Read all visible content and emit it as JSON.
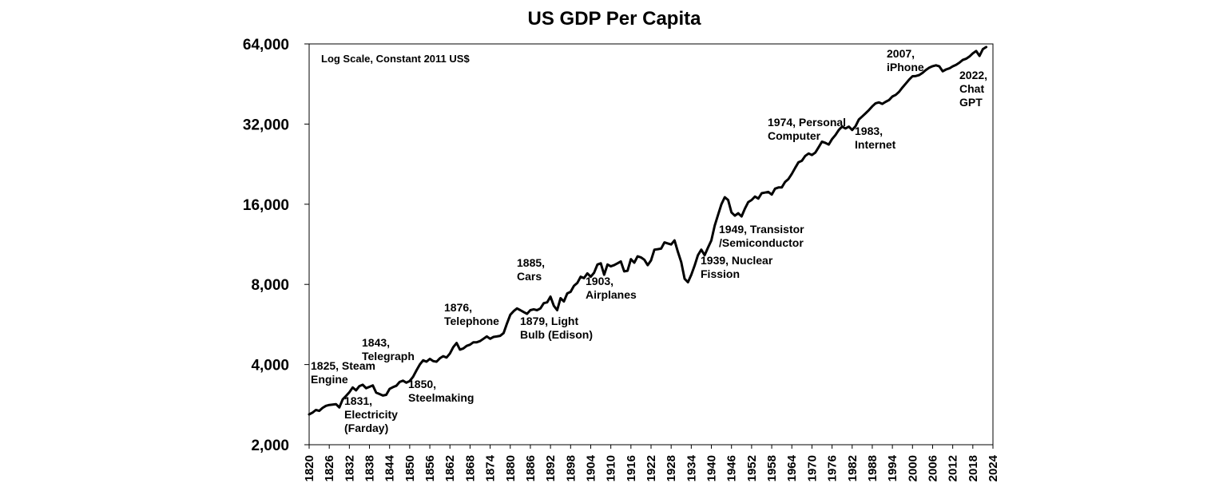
{
  "chart_data": {
    "type": "line",
    "title": "US GDP Per Capita",
    "note": "Log Scale, Constant 2011 US$",
    "y_scale": "log2",
    "ylim": [
      2000,
      64000
    ],
    "xlim": [
      1820,
      2024
    ],
    "y_ticks": [
      {
        "value": 2000,
        "label": "2,000"
      },
      {
        "value": 4000,
        "label": "4,000"
      },
      {
        "value": 8000,
        "label": "8,000"
      },
      {
        "value": 16000,
        "label": "16,000"
      },
      {
        "value": 32000,
        "label": "32,000"
      },
      {
        "value": 64000,
        "label": "64,000"
      }
    ],
    "x_ticks": [
      "1820",
      "1826",
      "1832",
      "1838",
      "1844",
      "1850",
      "1856",
      "1862",
      "1868",
      "1874",
      "1880",
      "1886",
      "1892",
      "1898",
      "1904",
      "1910",
      "1916",
      "1922",
      "1928",
      "1934",
      "1940",
      "1946",
      "1952",
      "1958",
      "1964",
      "1970",
      "1976",
      "1982",
      "1988",
      "1994",
      "2000",
      "2006",
      "2012",
      "2018",
      "2024"
    ],
    "series": [
      {
        "color": "#000000",
        "points": [
          [
            1820,
            2600
          ],
          [
            1821,
            2640
          ],
          [
            1822,
            2700
          ],
          [
            1823,
            2680
          ],
          [
            1824,
            2750
          ],
          [
            1825,
            2800
          ],
          [
            1826,
            2820
          ],
          [
            1827,
            2830
          ],
          [
            1828,
            2840
          ],
          [
            1829,
            2760
          ],
          [
            1830,
            2960
          ],
          [
            1831,
            3050
          ],
          [
            1832,
            3150
          ],
          [
            1833,
            3280
          ],
          [
            1834,
            3200
          ],
          [
            1835,
            3320
          ],
          [
            1836,
            3360
          ],
          [
            1837,
            3260
          ],
          [
            1838,
            3300
          ],
          [
            1839,
            3340
          ],
          [
            1840,
            3140
          ],
          [
            1841,
            3100
          ],
          [
            1842,
            3060
          ],
          [
            1843,
            3080
          ],
          [
            1844,
            3240
          ],
          [
            1845,
            3290
          ],
          [
            1846,
            3330
          ],
          [
            1847,
            3440
          ],
          [
            1848,
            3480
          ],
          [
            1849,
            3420
          ],
          [
            1850,
            3470
          ],
          [
            1851,
            3600
          ],
          [
            1852,
            3800
          ],
          [
            1853,
            4000
          ],
          [
            1854,
            4150
          ],
          [
            1855,
            4100
          ],
          [
            1856,
            4200
          ],
          [
            1857,
            4120
          ],
          [
            1858,
            4100
          ],
          [
            1859,
            4220
          ],
          [
            1860,
            4300
          ],
          [
            1861,
            4250
          ],
          [
            1862,
            4400
          ],
          [
            1863,
            4650
          ],
          [
            1864,
            4820
          ],
          [
            1865,
            4550
          ],
          [
            1866,
            4600
          ],
          [
            1867,
            4700
          ],
          [
            1868,
            4750
          ],
          [
            1869,
            4850
          ],
          [
            1870,
            4850
          ],
          [
            1871,
            4900
          ],
          [
            1872,
            5000
          ],
          [
            1873,
            5100
          ],
          [
            1874,
            5000
          ],
          [
            1875,
            5080
          ],
          [
            1876,
            5100
          ],
          [
            1877,
            5130
          ],
          [
            1878,
            5250
          ],
          [
            1879,
            5700
          ],
          [
            1880,
            6150
          ],
          [
            1881,
            6350
          ],
          [
            1882,
            6500
          ],
          [
            1883,
            6400
          ],
          [
            1884,
            6300
          ],
          [
            1885,
            6200
          ],
          [
            1886,
            6400
          ],
          [
            1887,
            6450
          ],
          [
            1888,
            6400
          ],
          [
            1889,
            6500
          ],
          [
            1890,
            6800
          ],
          [
            1891,
            6850
          ],
          [
            1892,
            7200
          ],
          [
            1893,
            6650
          ],
          [
            1894,
            6400
          ],
          [
            1895,
            7100
          ],
          [
            1896,
            6900
          ],
          [
            1897,
            7400
          ],
          [
            1898,
            7500
          ],
          [
            1899,
            7900
          ],
          [
            1900,
            8100
          ],
          [
            1901,
            8550
          ],
          [
            1902,
            8450
          ],
          [
            1903,
            8800
          ],
          [
            1904,
            8550
          ],
          [
            1905,
            8850
          ],
          [
            1906,
            9500
          ],
          [
            1907,
            9600
          ],
          [
            1908,
            8700
          ],
          [
            1909,
            9500
          ],
          [
            1910,
            9350
          ],
          [
            1911,
            9450
          ],
          [
            1912,
            9600
          ],
          [
            1913,
            9750
          ],
          [
            1914,
            8950
          ],
          [
            1915,
            9000
          ],
          [
            1916,
            9950
          ],
          [
            1917,
            9650
          ],
          [
            1918,
            10200
          ],
          [
            1919,
            10100
          ],
          [
            1920,
            9900
          ],
          [
            1921,
            9450
          ],
          [
            1922,
            9850
          ],
          [
            1923,
            10800
          ],
          [
            1924,
            10850
          ],
          [
            1925,
            10900
          ],
          [
            1926,
            11500
          ],
          [
            1927,
            11400
          ],
          [
            1928,
            11300
          ],
          [
            1929,
            11700
          ],
          [
            1930,
            10600
          ],
          [
            1931,
            9700
          ],
          [
            1932,
            8400
          ],
          [
            1933,
            8150
          ],
          [
            1934,
            8700
          ],
          [
            1935,
            9400
          ],
          [
            1936,
            10300
          ],
          [
            1937,
            10800
          ],
          [
            1938,
            10300
          ],
          [
            1939,
            11000
          ],
          [
            1940,
            11700
          ],
          [
            1941,
            13300
          ],
          [
            1942,
            14600
          ],
          [
            1943,
            16000
          ],
          [
            1944,
            17000
          ],
          [
            1945,
            16600
          ],
          [
            1946,
            14900
          ],
          [
            1947,
            14500
          ],
          [
            1948,
            14800
          ],
          [
            1949,
            14400
          ],
          [
            1950,
            15400
          ],
          [
            1951,
            16300
          ],
          [
            1952,
            16600
          ],
          [
            1953,
            17100
          ],
          [
            1954,
            16800
          ],
          [
            1955,
            17600
          ],
          [
            1956,
            17700
          ],
          [
            1957,
            17800
          ],
          [
            1958,
            17400
          ],
          [
            1959,
            18300
          ],
          [
            1960,
            18500
          ],
          [
            1961,
            18500
          ],
          [
            1962,
            19400
          ],
          [
            1963,
            19900
          ],
          [
            1964,
            20800
          ],
          [
            1965,
            21900
          ],
          [
            1966,
            23000
          ],
          [
            1967,
            23300
          ],
          [
            1968,
            24300
          ],
          [
            1969,
            24800
          ],
          [
            1970,
            24500
          ],
          [
            1971,
            25000
          ],
          [
            1972,
            26200
          ],
          [
            1973,
            27500
          ],
          [
            1974,
            27200
          ],
          [
            1975,
            26800
          ],
          [
            1976,
            28100
          ],
          [
            1977,
            29100
          ],
          [
            1978,
            30400
          ],
          [
            1979,
            31300
          ],
          [
            1980,
            30800
          ],
          [
            1981,
            31300
          ],
          [
            1982,
            30400
          ],
          [
            1983,
            31400
          ],
          [
            1984,
            33300
          ],
          [
            1985,
            34200
          ],
          [
            1986,
            35100
          ],
          [
            1987,
            36100
          ],
          [
            1988,
            37300
          ],
          [
            1989,
            38300
          ],
          [
            1990,
            38600
          ],
          [
            1991,
            38100
          ],
          [
            1992,
            38800
          ],
          [
            1993,
            39400
          ],
          [
            1994,
            40600
          ],
          [
            1995,
            41200
          ],
          [
            1996,
            42300
          ],
          [
            1997,
            43900
          ],
          [
            1998,
            45400
          ],
          [
            1999,
            47000
          ],
          [
            2000,
            48400
          ],
          [
            2001,
            48500
          ],
          [
            2002,
            48900
          ],
          [
            2003,
            49800
          ],
          [
            2004,
            51100
          ],
          [
            2005,
            52100
          ],
          [
            2006,
            52800
          ],
          [
            2007,
            53200
          ],
          [
            2008,
            52700
          ],
          [
            2009,
            50500
          ],
          [
            2010,
            51300
          ],
          [
            2011,
            51800
          ],
          [
            2012,
            52700
          ],
          [
            2013,
            53400
          ],
          [
            2014,
            54400
          ],
          [
            2015,
            55700
          ],
          [
            2016,
            56300
          ],
          [
            2017,
            57400
          ],
          [
            2018,
            59000
          ],
          [
            2019,
            60200
          ],
          [
            2020,
            57700
          ],
          [
            2021,
            61200
          ],
          [
            2022,
            62300
          ]
        ]
      }
    ],
    "annotations": [
      {
        "lines": [
          "1825, Steam",
          "Engine"
        ]
      },
      {
        "lines": [
          "1831,",
          "Electricity",
          "(Farday)"
        ]
      },
      {
        "lines": [
          "1843,",
          "Telegraph"
        ]
      },
      {
        "lines": [
          "1850,",
          "Steelmaking"
        ]
      },
      {
        "lines": [
          "1876,",
          "Telephone"
        ]
      },
      {
        "lines": [
          "1879, Light",
          "Bulb (Edison)"
        ]
      },
      {
        "lines": [
          "1885,",
          "Cars"
        ]
      },
      {
        "lines": [
          "1903,",
          "Airplanes"
        ]
      },
      {
        "lines": [
          "1939, Nuclear",
          "Fission"
        ]
      },
      {
        "lines": [
          "1949, Transistor",
          "/Semiconductor"
        ]
      },
      {
        "lines": [
          "1974, Personal",
          "Computer"
        ]
      },
      {
        "lines": [
          "1983,",
          "Internet"
        ]
      },
      {
        "lines": [
          "2007,",
          "iPhone"
        ]
      },
      {
        "lines": [
          "2022,",
          "Chat",
          "GPT"
        ]
      }
    ]
  }
}
